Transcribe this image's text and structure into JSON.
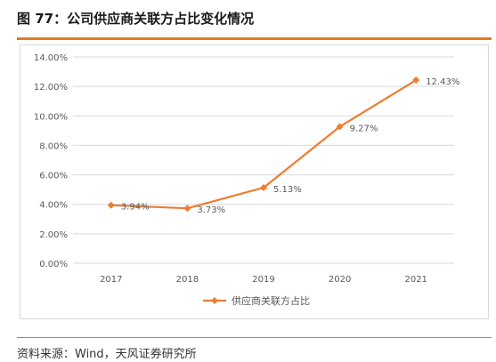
{
  "figure": {
    "title": "图 77：公司供应商关联方占比变化情况",
    "source": "资料来源：Wind，天风证券研究所"
  },
  "colors": {
    "accent": "#e07b1f",
    "line": "#ed7d31",
    "grid": "#d9d9d9",
    "text": "#595959"
  },
  "chart_data": {
    "type": "line",
    "title": "",
    "xlabel": "",
    "ylabel": "",
    "categories": [
      "2017",
      "2018",
      "2019",
      "2020",
      "2021"
    ],
    "series": [
      {
        "name": "供应商关联方占比",
        "values": [
          3.94,
          3.73,
          5.13,
          9.27,
          12.43
        ],
        "labels": [
          "3.94%",
          "3.73%",
          "5.13%",
          "9.27%",
          "12.43%"
        ]
      }
    ],
    "ylim": [
      0,
      14
    ],
    "yticks": [
      "0.00%",
      "2.00%",
      "4.00%",
      "6.00%",
      "8.00%",
      "10.00%",
      "12.00%",
      "14.00%"
    ],
    "grid": "horizontal",
    "legend": "bottom",
    "marker": "diamond"
  }
}
